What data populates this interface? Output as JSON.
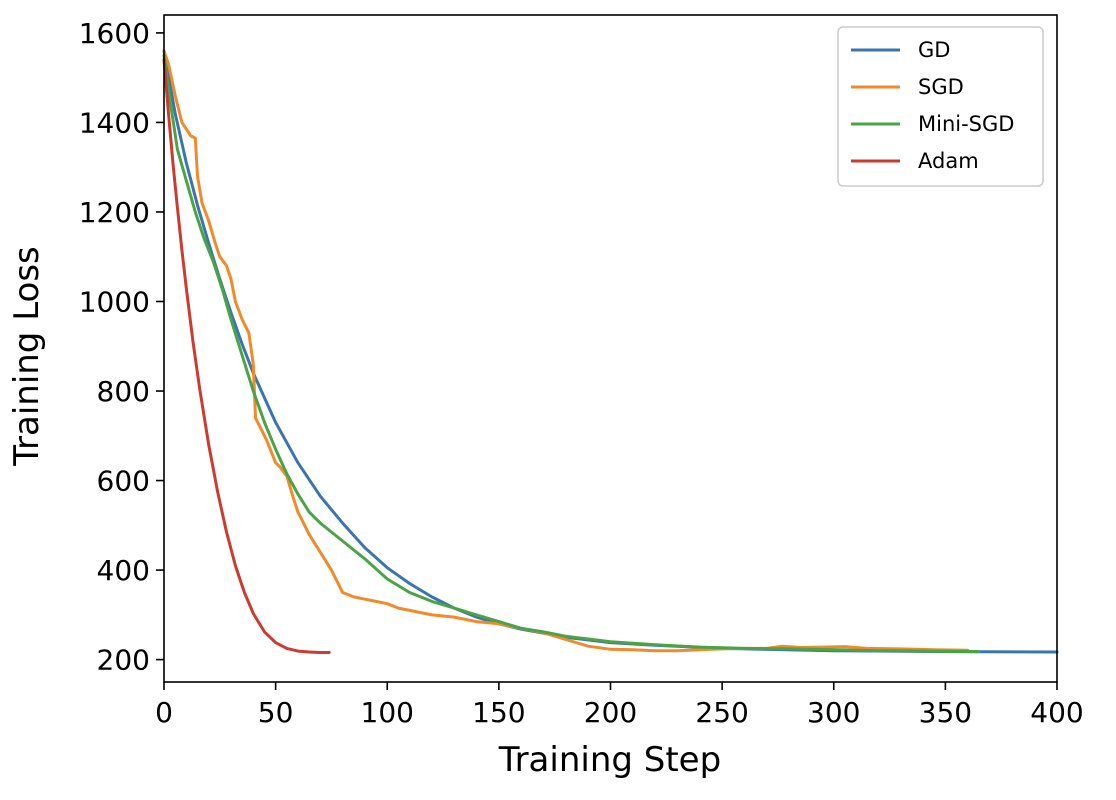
{
  "chart_data": {
    "type": "line",
    "title": "",
    "xlabel": "Training Step",
    "ylabel": "Training Loss",
    "xlim": [
      0,
      400
    ],
    "ylim": [
      150,
      1640
    ],
    "x_ticks": [
      0,
      50,
      100,
      150,
      200,
      250,
      300,
      350,
      400
    ],
    "y_ticks": [
      200,
      400,
      600,
      800,
      1000,
      1200,
      1400,
      1600
    ],
    "grid": false,
    "legend_position": "top-right",
    "series": [
      {
        "name": "GD",
        "color": "#3a75b0",
        "x": [
          0,
          5,
          10,
          15,
          20,
          25,
          30,
          35,
          40,
          50,
          60,
          70,
          80,
          90,
          100,
          110,
          120,
          130,
          140,
          150,
          160,
          180,
          200,
          220,
          250,
          300,
          350,
          400
        ],
        "y": [
          1560,
          1420,
          1310,
          1215,
          1130,
          1050,
          975,
          905,
          840,
          730,
          640,
          565,
          505,
          450,
          405,
          370,
          340,
          315,
          295,
          280,
          268,
          250,
          238,
          232,
          225,
          220,
          218,
          217
        ]
      },
      {
        "name": "SGD",
        "color": "#f08a2a",
        "x": [
          0,
          2,
          5,
          8,
          12,
          14,
          15,
          17,
          20,
          23,
          25,
          28,
          30,
          32,
          35,
          38,
          40,
          41,
          43,
          46,
          50,
          52,
          55,
          58,
          60,
          62,
          65,
          70,
          75,
          80,
          85,
          90,
          95,
          100,
          105,
          110,
          120,
          130,
          140,
          150,
          160,
          170,
          180,
          190,
          200,
          210,
          220,
          230,
          240,
          250,
          260,
          270,
          277,
          285,
          295,
          305,
          315,
          330,
          345,
          360
        ],
        "y": [
          1560,
          1530,
          1460,
          1400,
          1370,
          1365,
          1280,
          1220,
          1180,
          1130,
          1100,
          1080,
          1050,
          1000,
          960,
          930,
          860,
          740,
          720,
          690,
          640,
          630,
          610,
          560,
          530,
          510,
          480,
          440,
          400,
          350,
          340,
          335,
          330,
          325,
          315,
          310,
          300,
          295,
          285,
          280,
          270,
          260,
          245,
          230,
          223,
          222,
          220,
          220,
          222,
          224,
          225,
          225,
          230,
          227,
          228,
          229,
          225,
          224,
          222,
          221
        ]
      },
      {
        "name": "Mini-SGD",
        "color": "#4aa345",
        "x": [
          0,
          3,
          6,
          10,
          14,
          18,
          22,
          26,
          30,
          35,
          40,
          45,
          50,
          55,
          60,
          65,
          70,
          75,
          80,
          90,
          100,
          110,
          120,
          130,
          140,
          150,
          160,
          170,
          180,
          190,
          200,
          220,
          240,
          260,
          280,
          300,
          320,
          340,
          365
        ],
        "y": [
          1550,
          1440,
          1340,
          1270,
          1200,
          1140,
          1090,
          1030,
          960,
          880,
          800,
          730,
          670,
          615,
          570,
          530,
          505,
          485,
          465,
          425,
          380,
          350,
          330,
          315,
          300,
          285,
          270,
          262,
          252,
          246,
          240,
          233,
          228,
          225,
          224,
          222,
          220,
          219,
          218
        ]
      },
      {
        "name": "Adam",
        "color": "#cc3b2f",
        "x": [
          0,
          2,
          4,
          6,
          8,
          10,
          13,
          16,
          20,
          24,
          28,
          32,
          36,
          40,
          45,
          50,
          55,
          60,
          65,
          70,
          74
        ],
        "y": [
          1540,
          1420,
          1310,
          1210,
          1115,
          1030,
          910,
          805,
          680,
          575,
          485,
          410,
          350,
          303,
          262,
          238,
          225,
          219,
          217,
          216,
          216
        ]
      }
    ]
  }
}
